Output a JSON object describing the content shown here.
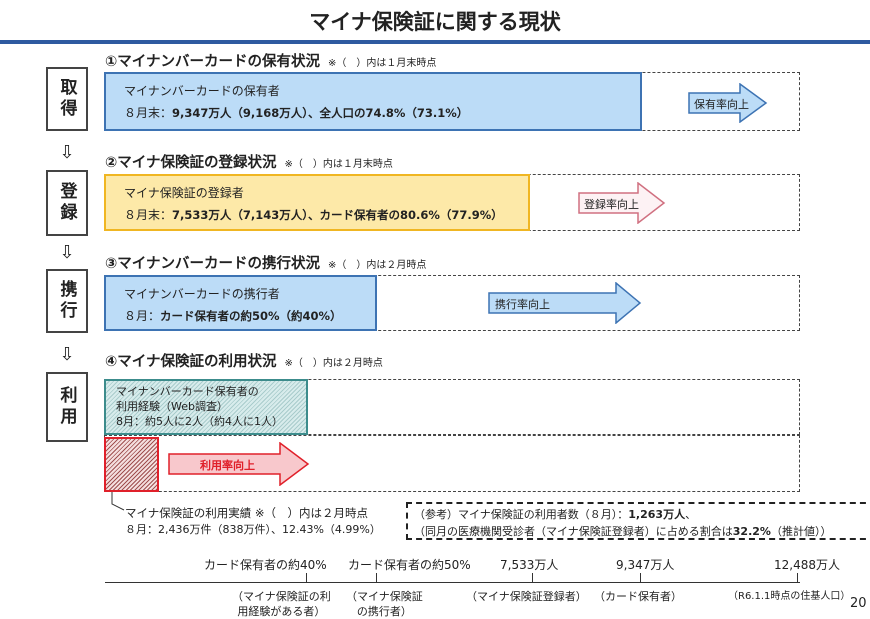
{
  "title": "マイナ保険証に関する現状",
  "steps": [
    "取得",
    "登録",
    "携行",
    "利用"
  ],
  "sections": [
    {
      "heading": "①マイナンバーカードの保有状況",
      "note": "※（　）内は１月末時点",
      "box_title": "マイナンバーカードの保有者",
      "box_line_prefix": "８月末：",
      "box_line_value": "9,347万人（9,168万人）、全人口の74.8%（73.1%）",
      "arrow": "保有率向上"
    },
    {
      "heading": "②マイナ保険証の登録状況",
      "note": "※（　）内は１月末時点",
      "box_title": "マイナ保険証の登録者",
      "box_line_prefix": "８月末：",
      "box_line_value": "7,533万人（7,143万人）、カード保有者の80.6%（77.9%）",
      "arrow": "登録率向上"
    },
    {
      "heading": "③マイナンバーカードの携行状況",
      "note": "※（　）内は２月時点",
      "box_title": "マイナンバーカードの携行者",
      "box_line_prefix": "８月：",
      "box_line_value": "カード保有者の約50%（約40%）",
      "arrow": "携行率向上"
    },
    {
      "heading": "④マイナ保険証の利用状況",
      "note": "※（　）内は２月時点",
      "box_title": "マイナンバーカード保有者の",
      "box_line2": "利用経験（Web調査）",
      "box_line3": "8月：約5人に2人（約4人に1人）",
      "arrow": "利用率向上"
    }
  ],
  "usage": {
    "line1": "マイナ保険証の利用実績 ※（　）内は２月時点",
    "line2": "８月：2,436万件（838万件）、12.43%（4.99%）"
  },
  "reference": {
    "line1_prefix": "（参考）マイナ保険証の利用者数（８月）：",
    "line1_bold": "1,263万人",
    "line1_suffix": "、",
    "line2_prefix": "（同月の医療機関受診者（マイナ保険証登録者）に占める割合は",
    "line2_bold": "32.2%",
    "line2_suffix": "（推計値））"
  },
  "scale": [
    {
      "label": "カード保有者の約40%",
      "sub": "（マイナ保険証の利\n用経験がある者）"
    },
    {
      "label": "カード保有者の約50%",
      "sub": "（マイナ保険証\nの携行者）"
    },
    {
      "label": "7,533万人",
      "sub": "（マイナ保険証登録者）"
    },
    {
      "label": "9,347万人",
      "sub": "（カード保有者）"
    },
    {
      "label": "12,488万人",
      "sub": "（R6.1.1時点の住基人口）"
    }
  ],
  "page_number": "20",
  "colors": {
    "blue_fill": "#bcdcf7",
    "blue_border": "#3d73b3",
    "yellow_fill": "#fde9a8",
    "yellow_border": "#f0b622",
    "green_border": "#3c8c8c",
    "red": "#e0202a"
  }
}
